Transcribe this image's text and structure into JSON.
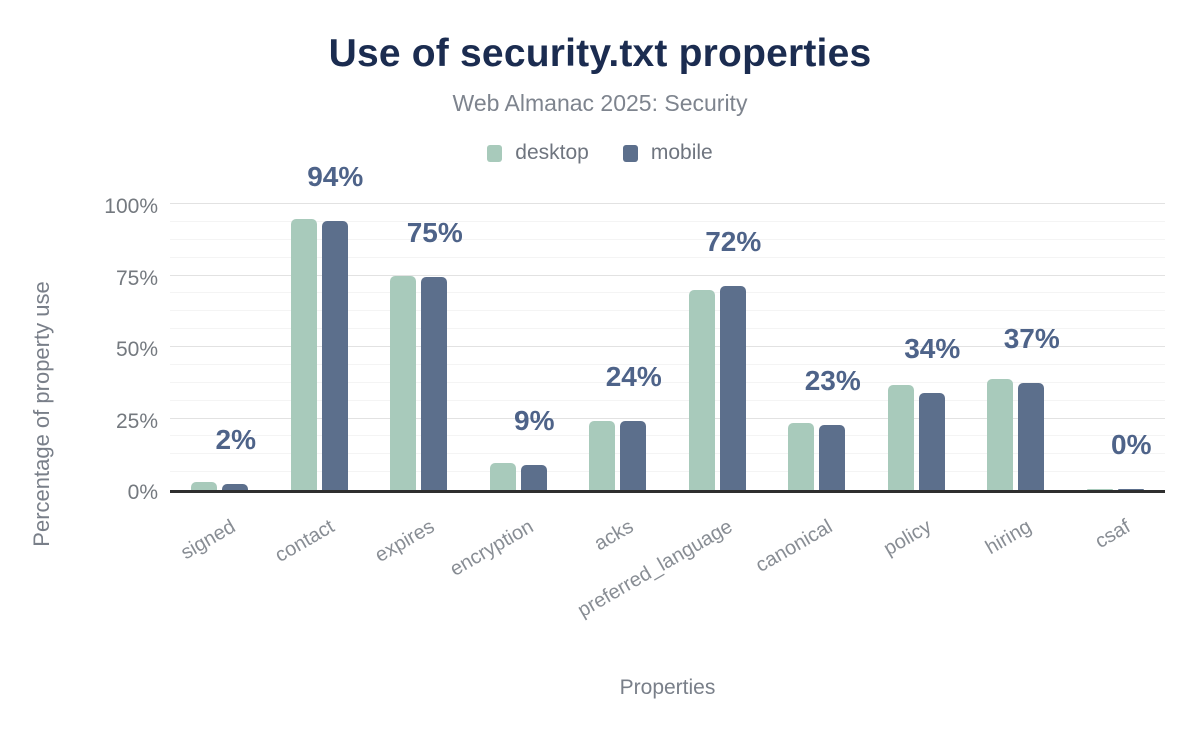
{
  "chart": {
    "title": "Use of security.txt properties",
    "subtitle": "Web Almanac 2025: Security",
    "x_axis_title": "Properties",
    "y_axis_title": "Percentage of property use"
  },
  "chart_data": {
    "type": "bar",
    "title": "Use of security.txt properties",
    "subtitle": "Web Almanac 2025: Security",
    "xlabel": "Properties",
    "ylabel": "Percentage of property use",
    "ylim": [
      0,
      100
    ],
    "yticks": [
      0,
      25,
      50,
      75,
      100
    ],
    "ytick_labels": [
      "0%",
      "25%",
      "50%",
      "75%",
      "100%"
    ],
    "grid": "horizontal, major lines every 25% with faint minor lines every 6.25%",
    "legend_position": "top-center",
    "categories": [
      "signed",
      "contact",
      "expires",
      "encryption",
      "acks",
      "preferred_language",
      "canonical",
      "policy",
      "hiring",
      "csaf"
    ],
    "series": [
      {
        "name": "desktop",
        "color": "#a8cabb",
        "values": [
          2.7,
          94.6,
          74.7,
          9.6,
          24.3,
          70.1,
          23.5,
          36.8,
          38.9,
          0.4
        ]
      },
      {
        "name": "mobile",
        "color": "#5c6f8c",
        "values": [
          2.2,
          94.1,
          74.6,
          8.9,
          24.2,
          71.5,
          22.8,
          33.8,
          37.4,
          0.4
        ]
      }
    ],
    "annotations": [
      "2%",
      "94%",
      "75%",
      "9%",
      "24%",
      "72%",
      "23%",
      "34%",
      "37%",
      "0%"
    ],
    "annotation_anchor_series": "mobile"
  },
  "colors": {
    "title": "#1b2c50",
    "subtitle": "#7e848e",
    "axis_text": "#74797f",
    "annotation_text": "#4e6389",
    "desktop_series": "#a8cabb",
    "mobile_series": "#5c6f8c",
    "baseline": "#2e2e2e",
    "gridline_major": "#e2e2e2",
    "gridline_minor": "#f4f4f4",
    "background": "#ffffff"
  }
}
